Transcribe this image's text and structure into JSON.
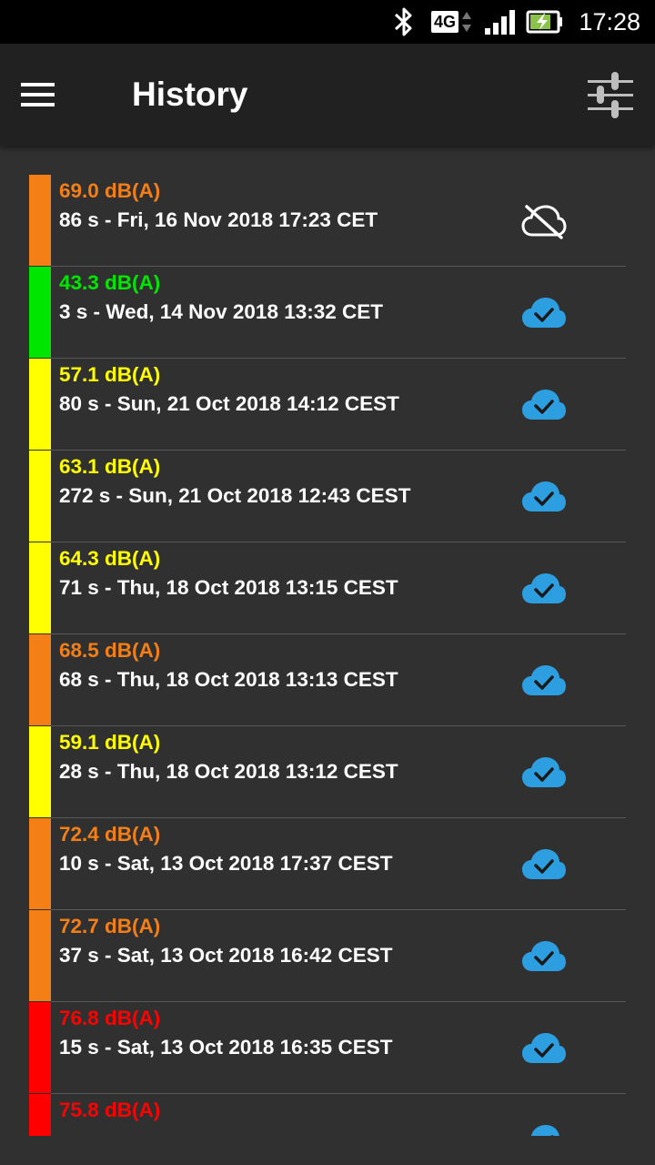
{
  "status_bar": {
    "time": "17:28",
    "network": "4G",
    "icons": [
      "bluetooth-icon",
      "network-4g-icon",
      "signal-icon",
      "battery-charging-icon"
    ]
  },
  "app_bar": {
    "title": "History",
    "menu_icon": "hamburger-menu-icon",
    "filter_icon": "sliders-filter-icon"
  },
  "colors": {
    "orange": "#f57f17",
    "green": "#00e600",
    "yellow": "#ffff00",
    "red": "#ff0000",
    "cloud_synced": "#2d9ee0",
    "cloud_unsynced": "#ffffff"
  },
  "history": [
    {
      "level": "69.0 dB(A)",
      "detail": "86 s - Fri, 16 Nov 2018 17:23 CET",
      "color": "#f57f17",
      "synced": false
    },
    {
      "level": "43.3 dB(A)",
      "detail": "3 s - Wed, 14 Nov 2018 13:32 CET",
      "color": "#00e600",
      "synced": true
    },
    {
      "level": "57.1 dB(A)",
      "detail": "80 s - Sun, 21 Oct 2018 14:12 CEST",
      "color": "#ffff00",
      "synced": true
    },
    {
      "level": "63.1 dB(A)",
      "detail": "272 s - Sun, 21 Oct 2018 12:43 CEST",
      "color": "#ffff00",
      "synced": true
    },
    {
      "level": "64.3 dB(A)",
      "detail": "71 s - Thu, 18 Oct 2018 13:15 CEST",
      "color": "#ffff00",
      "synced": true
    },
    {
      "level": "68.5 dB(A)",
      "detail": "68 s - Thu, 18 Oct 2018 13:13 CEST",
      "color": "#f57f17",
      "synced": true
    },
    {
      "level": "59.1 dB(A)",
      "detail": "28 s - Thu, 18 Oct 2018 13:12 CEST",
      "color": "#ffff00",
      "synced": true
    },
    {
      "level": "72.4 dB(A)",
      "detail": "10 s - Sat, 13 Oct 2018 17:37 CEST",
      "color": "#f57f17",
      "synced": true
    },
    {
      "level": "72.7 dB(A)",
      "detail": "37 s - Sat, 13 Oct 2018 16:42 CEST",
      "color": "#f57f17",
      "synced": true
    },
    {
      "level": "76.8 dB(A)",
      "detail": "15 s - Sat, 13 Oct 2018 16:35 CEST",
      "color": "#ff0000",
      "synced": true
    },
    {
      "level": "75.8 dB(A)",
      "detail": "",
      "color": "#ff0000",
      "synced": true
    }
  ]
}
